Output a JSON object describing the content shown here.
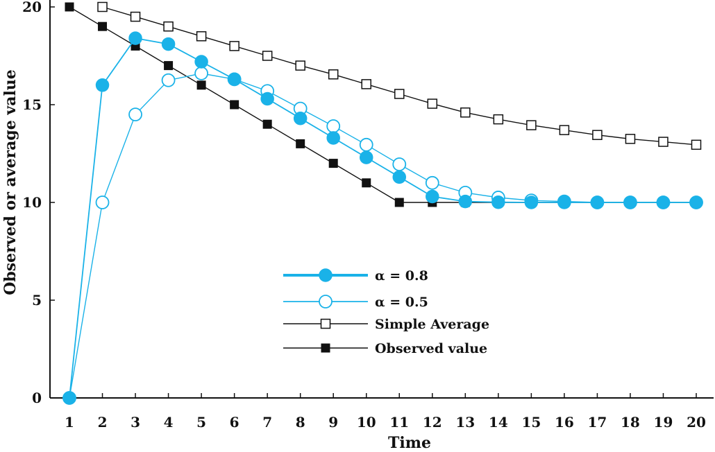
{
  "chart_data": {
    "type": "line",
    "title": "",
    "xlabel": "Time",
    "ylabel": "Observed or average value",
    "x": [
      1,
      2,
      3,
      4,
      5,
      6,
      7,
      8,
      9,
      10,
      11,
      12,
      13,
      14,
      15,
      16,
      17,
      18,
      19,
      20
    ],
    "xlim": [
      1,
      20
    ],
    "ylim": [
      0,
      20
    ],
    "x_ticks": [
      "1",
      "2",
      "3",
      "4",
      "5",
      "6",
      "7",
      "8",
      "9",
      "10",
      "11",
      "12",
      "13",
      "14",
      "15",
      "16",
      "17",
      "18",
      "19",
      "20"
    ],
    "y_ticks": [
      "0",
      "5",
      "10",
      "15",
      "20"
    ],
    "y_tick_values": [
      0,
      5,
      10,
      15,
      20
    ],
    "grid": false,
    "legend_position": "center",
    "series": [
      {
        "name": "α = 0.8",
        "color": "#1ab2e8",
        "marker": "filled-circle",
        "values": [
          0,
          16,
          18.4,
          18.1,
          17.2,
          16.3,
          15.3,
          14.3,
          13.3,
          12.3,
          11.3,
          10.3,
          10.05,
          10.01,
          10.0,
          10.0,
          10.0,
          10.0,
          10.0,
          10.0
        ]
      },
      {
        "name": "α = 0.5",
        "color": "#1ab2e8",
        "marker": "open-circle",
        "values": [
          0,
          10,
          14.5,
          16.25,
          16.6,
          16.3,
          15.7,
          14.8,
          13.9,
          12.95,
          11.95,
          11.0,
          10.5,
          10.25,
          10.1,
          10.05,
          10.0,
          10.0,
          10.0,
          10.0
        ]
      },
      {
        "name": "Simple Average",
        "color": "#111111",
        "marker": "open-square",
        "values": [
          null,
          20,
          19.5,
          19.0,
          18.5,
          18.0,
          17.5,
          17.0,
          16.55,
          16.05,
          15.55,
          15.05,
          14.6,
          14.25,
          13.95,
          13.7,
          13.45,
          13.25,
          13.1,
          12.95
        ]
      },
      {
        "name": "Observed value",
        "color": "#111111",
        "marker": "filled-square",
        "values": [
          20,
          19,
          18,
          17,
          16,
          15,
          14,
          13,
          12,
          11,
          10,
          10,
          10,
          10,
          10,
          10,
          10,
          10,
          10,
          10
        ]
      }
    ]
  }
}
